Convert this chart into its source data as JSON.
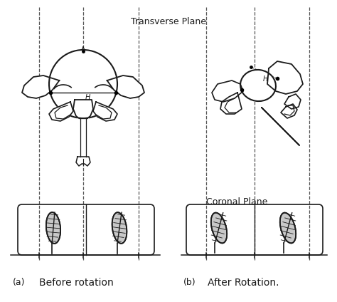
{
  "label_transverse": "Transverse Plane",
  "label_coronal": "Coronal Plane",
  "label_a": "(a)",
  "label_b": "(b)",
  "caption_a": "Before rotation",
  "caption_b": "After Rotation.",
  "label_H": "H",
  "bg_color": "#ffffff",
  "line_color": "#1a1a1a",
  "dash_color": "#555555",
  "gray_fill": "#c8c8c8"
}
